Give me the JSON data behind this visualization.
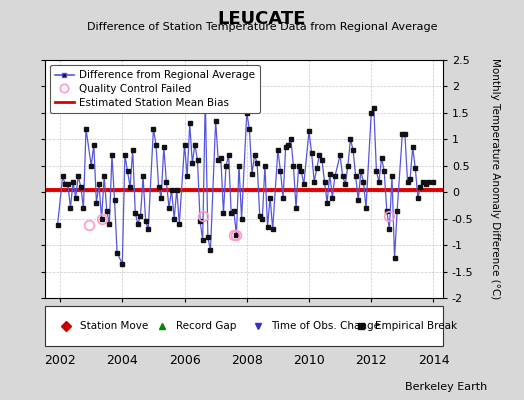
{
  "title": "LEUCATE",
  "subtitle": "Difference of Station Temperature Data from Regional Average",
  "ylabel": "Monthly Temperature Anomaly Difference (°C)",
  "xlabel_bottom": "Berkeley Earth",
  "bias_value": 0.05,
  "ylim": [
    -2.0,
    2.5
  ],
  "xlim": [
    2001.5,
    2014.3
  ],
  "xticks": [
    2002,
    2004,
    2006,
    2008,
    2010,
    2012,
    2014
  ],
  "yticks": [
    -2.0,
    -1.5,
    -1.0,
    -0.5,
    0.0,
    0.5,
    1.0,
    1.5,
    2.0,
    2.5
  ],
  "ytick_labels": [
    "-2",
    "-1.5",
    "-1",
    "-0.5",
    "0",
    "0.5",
    "1",
    "1.5",
    "2",
    "2.5"
  ],
  "line_color": "#5555dd",
  "marker_color": "#111111",
  "bias_color": "#dd0000",
  "qc_color": "#ff99cc",
  "background_color": "#d8d8d8",
  "plot_bg_color": "#ffffff",
  "data": {
    "times": [
      2001.917,
      2002.083,
      2002.167,
      2002.25,
      2002.333,
      2002.417,
      2002.5,
      2002.583,
      2002.667,
      2002.75,
      2002.833,
      2003.0,
      2003.083,
      2003.167,
      2003.25,
      2003.333,
      2003.417,
      2003.5,
      2003.583,
      2003.667,
      2003.75,
      2003.833,
      2004.0,
      2004.083,
      2004.167,
      2004.25,
      2004.333,
      2004.417,
      2004.5,
      2004.583,
      2004.667,
      2004.75,
      2004.833,
      2005.0,
      2005.083,
      2005.167,
      2005.25,
      2005.333,
      2005.417,
      2005.5,
      2005.583,
      2005.667,
      2005.75,
      2005.833,
      2006.0,
      2006.083,
      2006.167,
      2006.25,
      2006.333,
      2006.417,
      2006.5,
      2006.583,
      2006.667,
      2006.75,
      2006.833,
      2007.0,
      2007.083,
      2007.167,
      2007.25,
      2007.333,
      2007.417,
      2007.5,
      2007.583,
      2007.667,
      2007.75,
      2007.833,
      2008.0,
      2008.083,
      2008.167,
      2008.25,
      2008.333,
      2008.417,
      2008.5,
      2008.583,
      2008.667,
      2008.75,
      2008.833,
      2009.0,
      2009.083,
      2009.167,
      2009.25,
      2009.333,
      2009.417,
      2009.5,
      2009.583,
      2009.667,
      2009.75,
      2009.833,
      2010.0,
      2010.083,
      2010.167,
      2010.25,
      2010.333,
      2010.417,
      2010.5,
      2010.583,
      2010.667,
      2010.75,
      2010.833,
      2011.0,
      2011.083,
      2011.167,
      2011.25,
      2011.333,
      2011.417,
      2011.5,
      2011.583,
      2011.667,
      2011.75,
      2011.833,
      2012.0,
      2012.083,
      2012.167,
      2012.25,
      2012.333,
      2012.417,
      2012.5,
      2012.583,
      2012.667,
      2012.75,
      2012.833,
      2013.0,
      2013.083,
      2013.167,
      2013.25,
      2013.333,
      2013.417,
      2013.5,
      2013.583,
      2013.667,
      2013.75,
      2013.833,
      2014.0
    ],
    "values": [
      -0.62,
      0.3,
      0.15,
      0.15,
      -0.3,
      0.2,
      -0.1,
      0.3,
      0.1,
      -0.3,
      1.2,
      0.5,
      0.9,
      -0.2,
      0.15,
      -0.5,
      0.3,
      -0.35,
      -0.6,
      0.7,
      -0.15,
      -1.15,
      -1.35,
      0.7,
      0.4,
      0.1,
      0.8,
      -0.4,
      -0.6,
      -0.45,
      0.3,
      -0.55,
      -0.7,
      1.2,
      0.9,
      0.1,
      -0.1,
      0.85,
      0.2,
      -0.3,
      0.05,
      -0.5,
      0.05,
      -0.6,
      0.9,
      0.3,
      1.3,
      0.55,
      0.9,
      0.6,
      -0.55,
      -0.9,
      1.8,
      -0.85,
      -1.1,
      1.35,
      0.6,
      0.65,
      -0.4,
      0.5,
      0.7,
      -0.4,
      -0.35,
      -0.8,
      0.5,
      -0.5,
      1.5,
      1.2,
      0.35,
      0.7,
      0.55,
      -0.45,
      -0.5,
      0.5,
      -0.65,
      -0.1,
      -0.7,
      0.8,
      0.4,
      -0.1,
      0.85,
      0.9,
      1.0,
      0.5,
      -0.3,
      0.5,
      0.4,
      0.15,
      1.15,
      0.75,
      0.2,
      0.45,
      0.7,
      0.6,
      0.2,
      -0.2,
      0.35,
      -0.1,
      0.3,
      0.7,
      0.3,
      0.15,
      0.5,
      1.0,
      0.8,
      0.3,
      -0.15,
      0.4,
      0.2,
      -0.3,
      1.5,
      1.6,
      0.4,
      0.2,
      0.65,
      0.4,
      -0.35,
      -0.7,
      0.3,
      -1.25,
      -0.35,
      1.1,
      1.1,
      0.2,
      0.25,
      0.85,
      0.45,
      -0.1,
      0.1,
      0.2,
      0.15,
      0.2,
      0.2
    ],
    "qc_failed_times": [
      2002.917,
      2003.333,
      2006.583,
      2007.583,
      2007.667,
      2012.583
    ],
    "qc_failed_values": [
      -0.62,
      -0.5,
      -0.45,
      -0.8,
      -0.8,
      -0.45
    ]
  }
}
